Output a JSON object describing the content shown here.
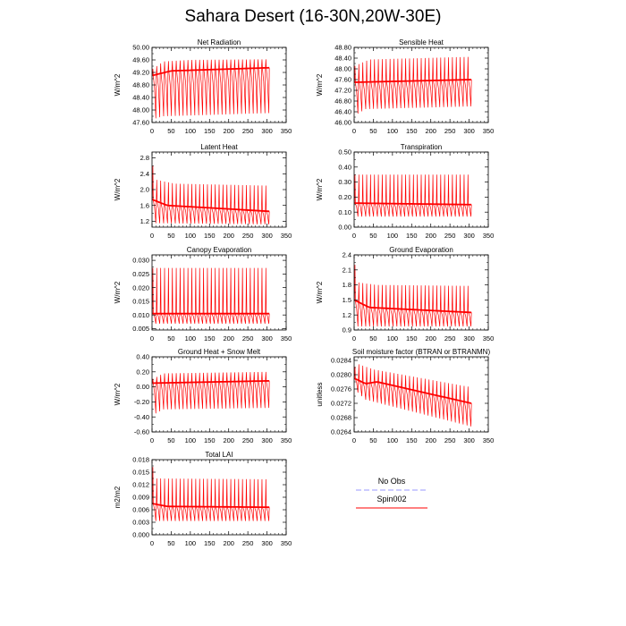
{
  "page": {
    "title": "Sahara Desert (16-30N,20W-30E)"
  },
  "legend": [
    {
      "label": "No Obs",
      "color": "#9a9aff",
      "dash": true
    },
    {
      "label": "Spin002",
      "color": "#ff0000",
      "dash": false
    }
  ],
  "chart_data": [
    {
      "type": "line",
      "title": "Net Radiation",
      "ylabel": "W/m^2",
      "xlim": [
        0,
        350
      ],
      "xticks": [
        0,
        50,
        100,
        150,
        200,
        250,
        300,
        350
      ],
      "ylim": [
        47.6,
        50.0
      ],
      "yticks": [
        "47.60",
        "48.00",
        "48.40",
        "48.80",
        "49.20",
        "49.60",
        "50.00"
      ],
      "series": [
        {
          "color": "#ff0000",
          "n_cycles": 30,
          "x_start": 1,
          "x_end": 306,
          "upper": [
            [
              0,
              49.3
            ],
            [
              30,
              49.55
            ],
            [
              100,
              49.6
            ],
            [
              306,
              49.62
            ]
          ],
          "lower": [
            [
              0,
              47.7
            ],
            [
              30,
              47.8
            ],
            [
              306,
              47.9
            ]
          ],
          "mid": [
            [
              0,
              49.1
            ],
            [
              50,
              49.25
            ],
            [
              306,
              49.35
            ]
          ]
        }
      ]
    },
    {
      "type": "line",
      "title": "Sensible Heat",
      "ylabel": "W/m^2",
      "xlim": [
        0,
        350
      ],
      "xticks": [
        0,
        50,
        100,
        150,
        200,
        250,
        300,
        350
      ],
      "ylim": [
        46.0,
        48.8
      ],
      "yticks": [
        "46.00",
        "46.40",
        "46.80",
        "47.20",
        "47.60",
        "48.00",
        "48.40",
        "48.80"
      ],
      "series": [
        {
          "color": "#ff0000",
          "n_cycles": 30,
          "x_start": 1,
          "x_end": 306,
          "upper": [
            [
              0,
              48.1
            ],
            [
              40,
              48.35
            ],
            [
              306,
              48.45
            ]
          ],
          "lower": [
            [
              0,
              46.25
            ],
            [
              30,
              46.5
            ],
            [
              306,
              46.6
            ]
          ],
          "mid": [
            [
              0,
              47.5
            ],
            [
              306,
              47.6
            ]
          ]
        }
      ]
    },
    {
      "type": "line",
      "title": "Latent Heat",
      "ylabel": "W/m^2",
      "xlim": [
        0,
        350
      ],
      "xticks": [
        0,
        50,
        100,
        150,
        200,
        250,
        300,
        350
      ],
      "ylim": [
        1.05,
        2.95
      ],
      "yticks": [
        "1.2",
        "1.6",
        "2.0",
        "2.4",
        "2.8"
      ],
      "series": [
        {
          "color": "#ff0000",
          "n_cycles": 30,
          "x_start": 1,
          "x_end": 306,
          "upper": [
            [
              0,
              2.7
            ],
            [
              10,
              2.25
            ],
            [
              60,
              2.15
            ],
            [
              306,
              2.1
            ]
          ],
          "lower": [
            [
              0,
              1.15
            ],
            [
              306,
              1.12
            ]
          ],
          "mid": [
            [
              0,
              1.75
            ],
            [
              40,
              1.6
            ],
            [
              306,
              1.45
            ]
          ]
        }
      ]
    },
    {
      "type": "line",
      "title": "Transpiration",
      "ylabel": "W/m^2",
      "xlim": [
        0,
        350
      ],
      "xticks": [
        0,
        50,
        100,
        150,
        200,
        250,
        300,
        350
      ],
      "ylim": [
        0.0,
        0.5
      ],
      "yticks": [
        "0.00",
        "0.10",
        "0.20",
        "0.30",
        "0.40",
        "0.50"
      ],
      "series": [
        {
          "color": "#ff0000",
          "n_cycles": 30,
          "x_start": 1,
          "x_end": 306,
          "upper": [
            [
              0,
              0.35
            ],
            [
              306,
              0.35
            ]
          ],
          "lower": [
            [
              0,
              0.07
            ],
            [
              306,
              0.07
            ]
          ],
          "mid": [
            [
              0,
              0.16
            ],
            [
              306,
              0.15
            ]
          ]
        }
      ]
    },
    {
      "type": "line",
      "title": "Canopy Evaporation",
      "ylabel": "W/m^2",
      "xlim": [
        0,
        350
      ],
      "xticks": [
        0,
        50,
        100,
        150,
        200,
        250,
        300,
        350
      ],
      "ylim": [
        0.0045,
        0.032
      ],
      "yticks": [
        "0.005",
        "0.010",
        "0.015",
        "0.020",
        "0.025",
        "0.030"
      ],
      "series": [
        {
          "color": "#ff0000",
          "n_cycles": 30,
          "x_start": 1,
          "x_end": 306,
          "upper": [
            [
              0,
              0.0272
            ],
            [
              306,
              0.0272
            ]
          ],
          "lower": [
            [
              0,
              0.0068
            ],
            [
              306,
              0.0068
            ]
          ],
          "mid": [
            [
              0,
              0.0105
            ],
            [
              306,
              0.0105
            ]
          ]
        }
      ]
    },
    {
      "type": "line",
      "title": "Ground Evaporation",
      "ylabel": "W/m^2",
      "xlim": [
        0,
        350
      ],
      "xticks": [
        0,
        50,
        100,
        150,
        200,
        250,
        300,
        350
      ],
      "ylim": [
        0.9,
        2.4
      ],
      "yticks": [
        "0.9",
        "1.2",
        "1.5",
        "1.8",
        "2.1",
        "2.4"
      ],
      "series": [
        {
          "color": "#ff0000",
          "n_cycles": 30,
          "x_start": 1,
          "x_end": 306,
          "upper": [
            [
              0,
              2.3
            ],
            [
              10,
              1.85
            ],
            [
              60,
              1.8
            ],
            [
              306,
              1.78
            ]
          ],
          "lower": [
            [
              0,
              0.97
            ],
            [
              306,
              0.97
            ]
          ],
          "mid": [
            [
              0,
              1.5
            ],
            [
              40,
              1.35
            ],
            [
              306,
              1.25
            ]
          ]
        }
      ]
    },
    {
      "type": "line",
      "title": "Ground Heat + Snow Melt",
      "ylabel": "W/m^2",
      "xlim": [
        0,
        350
      ],
      "xticks": [
        0,
        50,
        100,
        150,
        200,
        250,
        300,
        350
      ],
      "ylim": [
        -0.6,
        0.4
      ],
      "yticks": [
        "-0.60",
        "-0.40",
        "-0.20",
        "0.00",
        "0.20",
        "0.40"
      ],
      "series": [
        {
          "color": "#ff0000",
          "n_cycles": 30,
          "x_start": 1,
          "x_end": 306,
          "upper": [
            [
              0,
              0.1
            ],
            [
              30,
              0.18
            ],
            [
              306,
              0.2
            ]
          ],
          "lower": [
            [
              0,
              -0.38
            ],
            [
              30,
              -0.3
            ],
            [
              306,
              -0.28
            ]
          ],
          "mid": [
            [
              0,
              0.05
            ],
            [
              306,
              0.08
            ]
          ]
        }
      ]
    },
    {
      "type": "line",
      "title": "Soil moisture factor (BTRAN or BTRANMN)",
      "ylabel": "unitless",
      "xlim": [
        0,
        350
      ],
      "xticks": [
        0,
        50,
        100,
        150,
        200,
        250,
        300,
        350
      ],
      "ylim": [
        0.0264,
        0.0285
      ],
      "yticks": [
        "0.0264",
        "0.0268",
        "0.0272",
        "0.0276",
        "0.0280",
        "0.0284"
      ],
      "series": [
        {
          "color": "#ff0000",
          "n_cycles": 30,
          "x_start": 1,
          "x_end": 306,
          "upper": [
            [
              0,
              0.0282
            ],
            [
              10,
              0.0283
            ],
            [
              50,
              0.02815
            ],
            [
              306,
              0.02765
            ]
          ],
          "lower": [
            [
              0,
              0.0276
            ],
            [
              30,
              0.0273
            ],
            [
              306,
              0.02655
            ]
          ],
          "mid": [
            [
              0,
              0.0279
            ],
            [
              30,
              0.02775
            ],
            [
              60,
              0.0278
            ],
            [
              306,
              0.0272
            ]
          ]
        }
      ]
    },
    {
      "type": "line",
      "title": "Total LAI",
      "ylabel": "m2/m2",
      "xlim": [
        0,
        350
      ],
      "xticks": [
        0,
        50,
        100,
        150,
        200,
        250,
        300,
        350
      ],
      "ylim": [
        0.0,
        0.018
      ],
      "yticks": [
        "0.000",
        "0.003",
        "0.006",
        "0.009",
        "0.012",
        "0.015",
        "0.018"
      ],
      "series": [
        {
          "color": "#ff0000",
          "n_cycles": 30,
          "x_start": 1,
          "x_end": 306,
          "upper": [
            [
              0,
              0.017
            ],
            [
              10,
              0.0135
            ],
            [
              306,
              0.0133
            ]
          ],
          "lower": [
            [
              0,
              0.0033
            ],
            [
              306,
              0.0033
            ]
          ],
          "mid": [
            [
              0,
              0.0075
            ],
            [
              40,
              0.0068
            ],
            [
              306,
              0.0066
            ]
          ]
        }
      ]
    }
  ]
}
